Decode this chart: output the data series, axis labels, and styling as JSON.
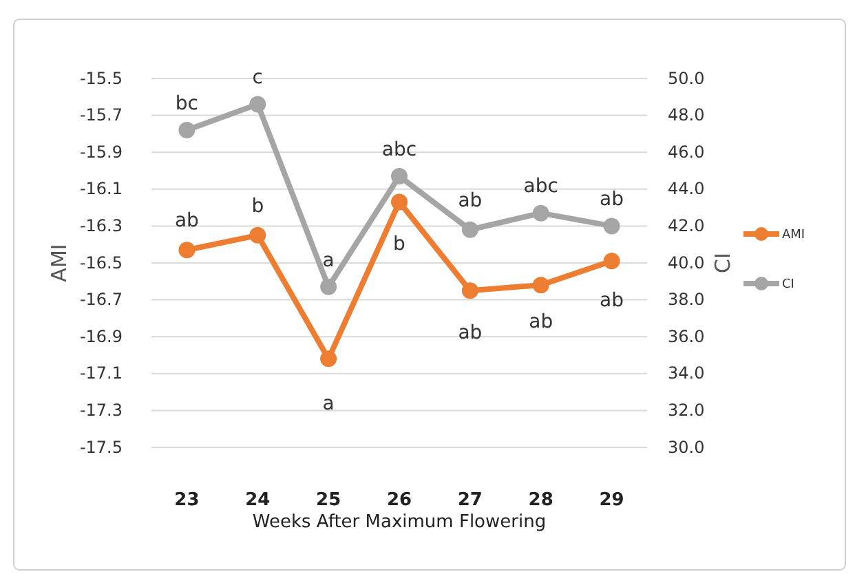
{
  "chart_data": {
    "type": "line",
    "xlabel": "Weeks After Maximum Flowering",
    "ylabel": "AMI",
    "y2label": "CI",
    "categories": [
      "23",
      "24",
      "25",
      "26",
      "27",
      "28",
      "29"
    ],
    "series": [
      {
        "name": "AMI",
        "color": "#ed7d31",
        "values": [
          -16.43,
          -16.35,
          -17.02,
          -16.17,
          -16.65,
          -16.62,
          -16.49
        ]
      },
      {
        "name": "CI",
        "color": "#a5a5a5",
        "axis": "y2",
        "values": [
          47.2,
          48.6,
          38.7,
          44.7,
          41.8,
          42.7,
          42.0
        ]
      }
    ],
    "ylim": [
      -17.5,
      -15.5
    ],
    "yticks": [
      -17.5,
      -17.3,
      -17.1,
      -16.9,
      -16.7,
      -16.5,
      -16.3,
      -16.1,
      -15.9,
      -15.7,
      -15.5
    ],
    "y2lim": [
      30,
      50
    ],
    "y2ticks": [
      {
        "value": 30,
        "label": "30.0"
      },
      {
        "value": 32,
        "label": "32.0"
      },
      {
        "value": 34,
        "label": "34.0"
      },
      {
        "value": 36,
        "label": "36.0"
      },
      {
        "value": 38,
        "label": "38.0"
      },
      {
        "value": 40,
        "label": "40.0"
      },
      {
        "value": 42,
        "label": "42.0"
      },
      {
        "value": 44,
        "label": "44.0"
      },
      {
        "value": 46,
        "label": "46.0"
      },
      {
        "value": 48,
        "label": "48.0"
      },
      {
        "value": 50,
        "label": "50.0"
      }
    ],
    "grid": "y",
    "legend": "right",
    "marker": "circle",
    "line_style": "solid",
    "annotations": [
      "bc",
      "c",
      "a",
      "abc",
      "ab",
      "abc",
      "ab",
      "ab",
      "b",
      "a",
      "b",
      "ab",
      "ab",
      "ab"
    ]
  }
}
